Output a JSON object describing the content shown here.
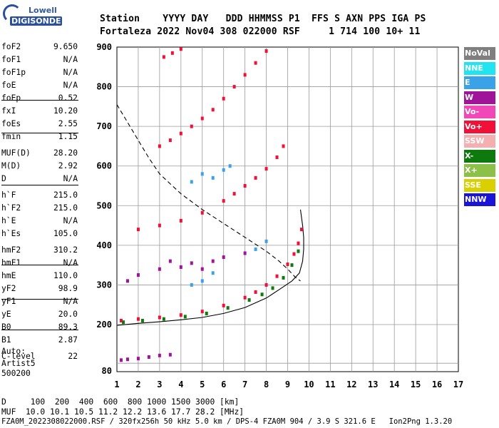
{
  "logo": {
    "line1": "Lowell",
    "line2": "DIGISONDE"
  },
  "header": {
    "line1": "Station    YYYY DAY   DDD HHMMSS P1  FFS S AXN PPS IGA PS",
    "line2": "Fortaleza 2022 Nov04 308 022000 RSF     1 714 100 10+ 11"
  },
  "params": [
    {
      "name": "foF2",
      "value": "9.650"
    },
    {
      "name": "foF1",
      "value": "N/A"
    },
    {
      "name": "foF1p",
      "value": "N/A"
    },
    {
      "name": "foE",
      "value": "N/A"
    },
    {
      "name": "foEp",
      "value": "0.52"
    },
    {
      "name": "fxI",
      "value": "10.20"
    },
    {
      "name": "foEs",
      "value": "2.55"
    },
    {
      "name": "fmin",
      "value": "1.15"
    },
    {
      "name": "MUF(D)",
      "value": "28.20"
    },
    {
      "name": "M(D)",
      "value": "2.92"
    },
    {
      "name": "D",
      "value": "N/A"
    },
    {
      "name": "h`F",
      "value": "215.0"
    },
    {
      "name": "h`F2",
      "value": "215.0"
    },
    {
      "name": "h`E",
      "value": "N/A"
    },
    {
      "name": "h`Es",
      "value": "105.0"
    },
    {
      "name": "hmF2",
      "value": "310.2"
    },
    {
      "name": "hmF1",
      "value": "N/A"
    },
    {
      "name": "hmE",
      "value": "110.0"
    },
    {
      "name": "yF2",
      "value": "98.9"
    },
    {
      "name": "yF1",
      "value": "N/A"
    },
    {
      "name": "yE",
      "value": "20.0"
    },
    {
      "name": "B0",
      "value": "89.3"
    },
    {
      "name": "B1",
      "value": "2.87"
    },
    {
      "name": "C-level",
      "value": "22"
    }
  ],
  "autoscaling": {
    "line1": "Auto:",
    "line2": "Artist5",
    "line3": "500200"
  },
  "legend": [
    {
      "label": "NoVal",
      "color": "#7f7f7f"
    },
    {
      "label": "NNE",
      "color": "#22e4f0"
    },
    {
      "label": "E",
      "color": "#3aa3e8"
    },
    {
      "label": "W",
      "color": "#a0149a"
    },
    {
      "label": "Vo-",
      "color": "#f048b8"
    },
    {
      "label": "Vo+",
      "color": "#f01038"
    },
    {
      "label": "SSW",
      "color": "#f4b0b0"
    },
    {
      "label": "X-",
      "color": "#0e7a0e"
    },
    {
      "label": "X+",
      "color": "#8cc048"
    },
    {
      "label": "SSE",
      "color": "#d8d000"
    },
    {
      "label": "NNW",
      "color": "#1a14d8"
    }
  ],
  "footer": {
    "d_row": "D     100  200  400  600  800 1000 1500 3000 [km]",
    "muf_row": "MUF  10.0 10.1 10.5 11.2 12.2 13.6 17.7 28.2 [MHz]",
    "file_row": "FZA0M_2022308022000.RSF / 320fx256h 50 kHz 5.0 km / DPS-4 FZA0M 904 / 3.9 S 321.6 E   Ion2Png 1.3.20"
  },
  "chart_data": {
    "type": "scatter",
    "title": "",
    "xlabel": "",
    "ylabel": "",
    "xlim": [
      1,
      17
    ],
    "ylim": [
      80,
      900
    ],
    "xticks": [
      1,
      2,
      3,
      4,
      5,
      6,
      7,
      8,
      9,
      10,
      11,
      12,
      13,
      14,
      15,
      16,
      17
    ],
    "yticks": [
      80,
      200,
      300,
      400,
      500,
      600,
      700,
      800,
      900
    ],
    "grid": true,
    "legend_position": "right",
    "series": [
      {
        "color": "#f01038",
        "points": [
          [
            1.2,
            210
          ],
          [
            2,
            214
          ],
          [
            3,
            218
          ],
          [
            4,
            224
          ],
          [
            5,
            233
          ],
          [
            6,
            248
          ],
          [
            7,
            268
          ],
          [
            7.5,
            282
          ],
          [
            8,
            300
          ],
          [
            8.5,
            322
          ],
          [
            9,
            352
          ],
          [
            9.3,
            378
          ],
          [
            9.5,
            405
          ],
          [
            9.65,
            440
          ]
        ]
      },
      {
        "color": "#0e7a0e",
        "points": [
          [
            1.3,
            206
          ],
          [
            2.2,
            210
          ],
          [
            3.2,
            214
          ],
          [
            4.2,
            220
          ],
          [
            5.2,
            228
          ],
          [
            6.2,
            242
          ],
          [
            7.2,
            262
          ],
          [
            7.8,
            276
          ],
          [
            8.3,
            292
          ],
          [
            8.8,
            318
          ],
          [
            9.2,
            350
          ],
          [
            9.5,
            385
          ]
        ]
      },
      {
        "color": "#f01038",
        "points": [
          [
            2,
            440
          ],
          [
            3,
            450
          ],
          [
            4,
            462
          ],
          [
            5,
            482
          ],
          [
            6,
            512
          ],
          [
            6.5,
            530
          ],
          [
            7,
            550
          ],
          [
            7.5,
            570
          ],
          [
            8,
            593
          ],
          [
            8.5,
            622
          ],
          [
            8.8,
            650
          ]
        ]
      },
      {
        "color": "#f01038",
        "points": [
          [
            3,
            650
          ],
          [
            3.5,
            665
          ],
          [
            4,
            682
          ],
          [
            4.5,
            700
          ],
          [
            5,
            720
          ],
          [
            5.5,
            742
          ],
          [
            6,
            770
          ],
          [
            6.5,
            800
          ],
          [
            7,
            830
          ],
          [
            7.5,
            860
          ],
          [
            8,
            890
          ]
        ]
      },
      {
        "color": "#f01038",
        "points": [
          [
            3.2,
            875
          ],
          [
            3.6,
            885
          ],
          [
            4,
            895
          ]
        ]
      },
      {
        "color": "#a0149a",
        "points": [
          [
            1.5,
            310
          ],
          [
            2,
            325
          ],
          [
            3,
            340
          ],
          [
            3.5,
            360
          ],
          [
            4,
            345
          ],
          [
            4.5,
            355
          ],
          [
            5,
            340
          ],
          [
            5.5,
            360
          ],
          [
            6,
            370
          ],
          [
            7,
            380
          ]
        ]
      },
      {
        "color": "#3aa3e8",
        "points": [
          [
            4.5,
            300
          ],
          [
            5,
            310
          ],
          [
            5.5,
            330
          ],
          [
            4.5,
            560
          ],
          [
            5,
            580
          ],
          [
            5.5,
            570
          ],
          [
            6,
            590
          ],
          [
            6.3,
            600
          ],
          [
            7.5,
            390
          ],
          [
            8,
            410
          ]
        ]
      },
      {
        "color": "#a0149a",
        "points": [
          [
            1.2,
            108
          ],
          [
            1.5,
            110
          ],
          [
            2,
            112
          ],
          [
            2.5,
            116
          ],
          [
            3,
            120
          ],
          [
            3.5,
            122
          ]
        ]
      }
    ],
    "traces": [
      {
        "style": "solid",
        "points": [
          [
            1,
            198
          ],
          [
            2,
            203
          ],
          [
            3,
            207
          ],
          [
            4,
            212
          ],
          [
            5,
            218
          ],
          [
            6,
            228
          ],
          [
            7,
            243
          ],
          [
            8,
            267
          ],
          [
            8.6,
            288
          ],
          [
            9.2,
            310
          ],
          [
            9.55,
            330
          ],
          [
            9.7,
            360
          ],
          [
            9.75,
            390
          ],
          [
            9.75,
            420
          ],
          [
            9.7,
            450
          ],
          [
            9.65,
            470
          ],
          [
            9.6,
            490
          ]
        ]
      },
      {
        "style": "dashed",
        "points": [
          [
            1,
            755
          ],
          [
            1.5,
            710
          ],
          [
            2,
            665
          ],
          [
            2.5,
            620
          ],
          [
            3,
            580
          ],
          [
            4,
            530
          ],
          [
            5,
            490
          ],
          [
            6,
            455
          ],
          [
            7,
            420
          ],
          [
            8,
            385
          ],
          [
            8.6,
            360
          ],
          [
            9,
            340
          ],
          [
            9.35,
            320
          ],
          [
            9.6,
            310
          ]
        ]
      }
    ]
  }
}
